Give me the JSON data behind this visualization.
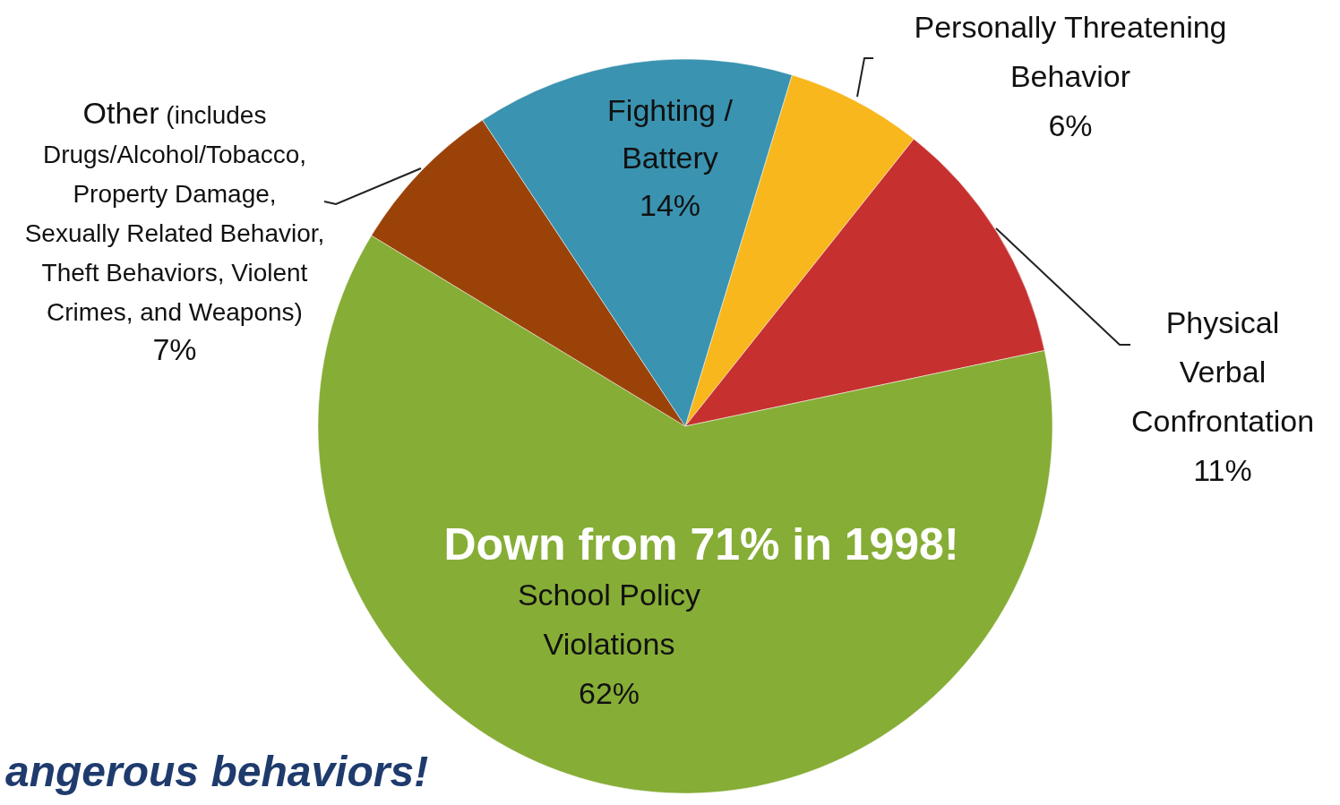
{
  "chart_data": {
    "type": "pie",
    "categories": [
      "Personally Threatening Behavior",
      "Physical Verbal Confrontation",
      "School Policy Violations",
      "Other (includes Drugs/Alcohol/Tobacco, Property Damage, Sexually Related Behavior, Theft Behaviors, Violent Crimes, and Weapons)",
      "Fighting / Battery"
    ],
    "values": [
      6,
      11,
      62,
      7,
      14
    ],
    "colors": [
      "#f8b71c",
      "#c6302f",
      "#86ad36",
      "#9b4209",
      "#3a93b0"
    ],
    "value_labels": [
      "6%",
      "11%",
      "62%",
      "7%",
      "14%"
    ],
    "annotations": [
      "Down from 71% in 1998!",
      "angerous behaviors!"
    ]
  }
}
